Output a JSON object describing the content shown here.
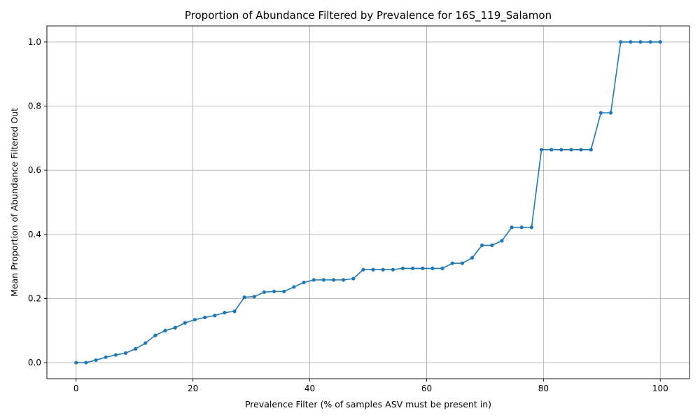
{
  "chart_data": {
    "type": "line",
    "title": "Proportion of Abundance Filtered by Prevalence for 16S_119_Salamon",
    "xlabel": "Prevalence Filter (% of samples ASV must be present in)",
    "ylabel": "Mean Proportion of Abundance Filtered Out",
    "xlim": [
      -5,
      105
    ],
    "ylim": [
      -0.05,
      1.05
    ],
    "xticks": [
      0,
      20,
      40,
      60,
      80,
      100
    ],
    "yticks": [
      0.0,
      0.2,
      0.4,
      0.6,
      0.8,
      1.0
    ],
    "xtick_labels": [
      "0",
      "20",
      "40",
      "60",
      "80",
      "100"
    ],
    "ytick_labels": [
      "0.0",
      "0.2",
      "0.4",
      "0.6",
      "0.8",
      "1.0"
    ],
    "grid": true,
    "marker": "circle",
    "color": "#1f77b4",
    "x": [
      0.0,
      1.69,
      3.39,
      5.08,
      6.78,
      8.47,
      10.17,
      11.86,
      13.56,
      15.25,
      16.95,
      18.64,
      20.34,
      22.03,
      23.73,
      25.42,
      27.12,
      28.81,
      30.51,
      32.2,
      33.9,
      35.59,
      37.29,
      38.98,
      40.68,
      42.37,
      44.07,
      45.76,
      47.46,
      49.15,
      50.85,
      52.54,
      54.24,
      55.93,
      57.63,
      59.32,
      61.02,
      62.71,
      64.41,
      66.1,
      67.8,
      69.49,
      71.19,
      72.88,
      74.58,
      76.27,
      77.97,
      79.66,
      81.36,
      83.05,
      84.75,
      86.44,
      88.14,
      89.83,
      91.53,
      93.22,
      94.92,
      96.61,
      98.31,
      100.0
    ],
    "y": [
      0.0,
      0.0,
      0.008,
      0.017,
      0.024,
      0.03,
      0.043,
      0.061,
      0.085,
      0.1,
      0.109,
      0.124,
      0.134,
      0.141,
      0.147,
      0.156,
      0.16,
      0.204,
      0.206,
      0.22,
      0.222,
      0.222,
      0.236,
      0.25,
      0.258,
      0.258,
      0.258,
      0.258,
      0.262,
      0.29,
      0.29,
      0.29,
      0.29,
      0.294,
      0.294,
      0.294,
      0.294,
      0.294,
      0.31,
      0.31,
      0.327,
      0.366,
      0.366,
      0.38,
      0.422,
      0.422,
      0.422,
      0.664,
      0.664,
      0.664,
      0.664,
      0.664,
      0.664,
      0.779,
      0.779,
      1.0,
      1.0,
      1.0,
      1.0,
      1.0
    ]
  }
}
